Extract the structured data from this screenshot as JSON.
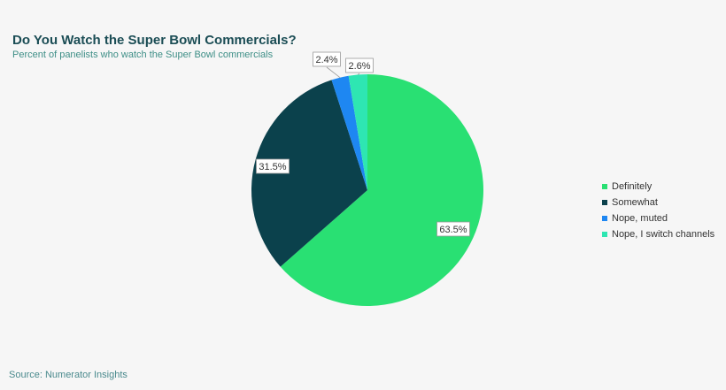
{
  "header": {
    "title": "Do You Watch the Super Bowl Commercials?",
    "subtitle": "Percent of panelists who watch the Super Bowl commercials"
  },
  "footer": {
    "source": "Source: Numerator Insights"
  },
  "chart_data": {
    "type": "pie",
    "title": "Do You Watch the Super Bowl Commercials?",
    "subtitle": "Percent of panelists who watch the Super Bowl commercials",
    "categories": [
      "Definitely",
      "Somewhat",
      "Nope, muted",
      "Nope, I switch channels"
    ],
    "values": [
      63.5,
      31.5,
      2.4,
      2.6
    ],
    "data_labels": [
      "63.5%",
      "31.5%",
      "2.4%",
      "2.6%"
    ],
    "colors": [
      "#29e073",
      "#0b414c",
      "#1e87f2",
      "#2ee6b2"
    ],
    "legend_position": "right",
    "start_angle": "top, clockwise"
  }
}
